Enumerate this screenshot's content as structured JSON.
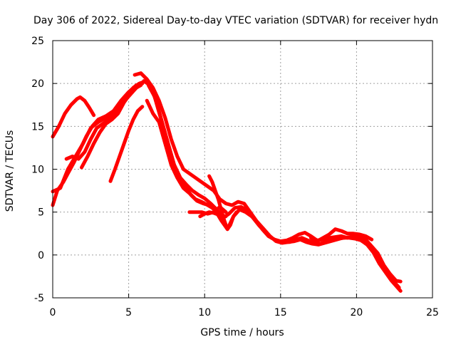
{
  "chart_data": {
    "type": "line",
    "title": "Day 306 of 2022, Sidereal Day-to-day VTEC variation (SDTVAR) for receiver hydn",
    "xlabel": "GPS time / hours",
    "ylabel": "SDTVAR / TECUs",
    "xlim": [
      0,
      25
    ],
    "ylim": [
      -5,
      25
    ],
    "xticks": [
      "0",
      "5",
      "10",
      "15",
      "20",
      "25"
    ],
    "yticks": [
      "-5",
      "0",
      "5",
      "10",
      "15",
      "20",
      "25"
    ],
    "grid": true,
    "color": "#ff0000",
    "series": [
      {
        "name": "track-1",
        "x": [
          0.0,
          0.4,
          0.8,
          1.2,
          1.6,
          1.8,
          2.1,
          2.4,
          2.7
        ],
        "y": [
          13.8,
          15.0,
          16.5,
          17.5,
          18.2,
          18.4,
          18.0,
          17.2,
          16.3
        ]
      },
      {
        "name": "track-2",
        "x": [
          0.0,
          0.3,
          0.7,
          1.0,
          1.4,
          1.8,
          2.2,
          2.6,
          3.0,
          3.5,
          4.0,
          4.5,
          5.0,
          5.5,
          5.9
        ],
        "y": [
          5.8,
          7.5,
          8.5,
          9.5,
          10.8,
          12.3,
          13.8,
          15.0,
          15.8,
          16.2,
          16.8,
          18.0,
          19.0,
          19.8,
          20.0
        ]
      },
      {
        "name": "track-3",
        "x": [
          0.0,
          0.5,
          1.0,
          1.5,
          2.0,
          2.5,
          3.0,
          3.5,
          4.0,
          4.5,
          5.0,
          5.5,
          5.8
        ],
        "y": [
          7.4,
          7.8,
          10.0,
          11.5,
          13.0,
          14.8,
          15.5,
          16.0,
          16.6,
          17.5,
          18.5,
          19.5,
          20.0
        ]
      },
      {
        "name": "track-4",
        "x": [
          0.9,
          1.3,
          1.7,
          2.1,
          2.5,
          2.9,
          3.3,
          3.7,
          4.1,
          4.5,
          4.9,
          5.3,
          5.7,
          6.0
        ],
        "y": [
          11.2,
          11.5,
          11.2,
          12.0,
          13.5,
          14.8,
          15.3,
          15.8,
          16.5,
          17.5,
          18.5,
          19.5,
          20.0,
          20.2
        ]
      },
      {
        "name": "track-5",
        "x": [
          1.9,
          2.3,
          2.7,
          3.1,
          3.5,
          3.9,
          4.3,
          4.7,
          5.1,
          5.5,
          5.8
        ],
        "y": [
          10.2,
          11.5,
          13.0,
          14.3,
          15.3,
          15.8,
          16.5,
          17.8,
          18.8,
          19.5,
          19.8
        ]
      },
      {
        "name": "track-6",
        "x": [
          3.8,
          4.1,
          4.4,
          4.7,
          5.0,
          5.3,
          5.6,
          5.9
        ],
        "y": [
          8.6,
          10.0,
          11.5,
          13.0,
          14.5,
          15.8,
          16.8,
          17.3
        ]
      },
      {
        "name": "track-7",
        "x": [
          5.4,
          5.8,
          6.2,
          6.6,
          7.0,
          7.4,
          7.8,
          8.2,
          8.6,
          9.0,
          9.4,
          9.8,
          10.2,
          10.6,
          11.0,
          11.4,
          11.8,
          12.2,
          12.6,
          13.0,
          13.4,
          13.8,
          14.2,
          14.6,
          15.0,
          15.4,
          15.8,
          16.2,
          16.6,
          17.0,
          17.4,
          17.8,
          18.2,
          18.6,
          19.0,
          19.4,
          19.8,
          20.2,
          20.6,
          21.0,
          21.4,
          21.8,
          22.2,
          22.6,
          22.9
        ],
        "y": [
          21.0,
          21.2,
          20.5,
          19.5,
          18.0,
          16.0,
          13.5,
          11.5,
          10.0,
          9.5,
          9.0,
          8.5,
          8.0,
          7.5,
          6.5,
          6.0,
          5.8,
          6.2,
          6.0,
          5.0,
          4.0,
          3.0,
          2.2,
          1.8,
          1.6,
          1.7,
          2.0,
          2.4,
          2.6,
          2.2,
          1.7,
          1.8,
          2.0,
          2.1,
          2.2,
          2.0,
          2.2,
          2.2,
          1.8,
          1.0,
          0.2,
          -1.2,
          -2.2,
          -3.0,
          -3.1
        ]
      },
      {
        "name": "track-8",
        "x": [
          6.0,
          6.4,
          6.8,
          7.2,
          7.6,
          8.0,
          8.4,
          8.8,
          9.2,
          9.6,
          10.0,
          10.4,
          10.8,
          11.2,
          11.6,
          12.0,
          12.4,
          12.8,
          13.2,
          13.6,
          14.0,
          14.4,
          14.8,
          15.2,
          15.6,
          16.0,
          16.4,
          16.8,
          17.2,
          17.6,
          18.0,
          18.4,
          18.8,
          19.2,
          19.6,
          20.0,
          20.4,
          20.8,
          21.2,
          21.6,
          22.0,
          22.4,
          22.8
        ],
        "y": [
          20.3,
          19.8,
          18.0,
          15.5,
          13.0,
          10.5,
          9.0,
          8.2,
          7.5,
          7.0,
          6.6,
          6.0,
          5.3,
          4.3,
          4.8,
          5.5,
          5.6,
          5.2,
          4.3,
          3.4,
          2.6,
          2.0,
          1.6,
          1.5,
          1.5,
          1.8,
          2.0,
          1.7,
          1.4,
          1.3,
          1.5,
          1.7,
          1.9,
          2.0,
          2.1,
          2.0,
          1.8,
          1.3,
          0.4,
          -0.8,
          -2.0,
          -3.0,
          -3.8
        ]
      },
      {
        "name": "track-9",
        "x": [
          6.3,
          6.7,
          7.1,
          7.5,
          7.9,
          8.3,
          8.7,
          9.1,
          9.5,
          9.9,
          10.3,
          10.7,
          11.1,
          11.5,
          11.9,
          12.3,
          12.7,
          13.1,
          13.5,
          13.9,
          14.3,
          14.7,
          15.1,
          15.5,
          15.9,
          16.3,
          16.7,
          17.1,
          17.5,
          17.9,
          18.3,
          18.7,
          19.1,
          19.5,
          19.9,
          20.3,
          20.7,
          21.1,
          21.5,
          21.9,
          22.3,
          22.7,
          22.9
        ],
        "y": [
          19.8,
          18.5,
          16.0,
          13.0,
          10.5,
          9.2,
          8.0,
          7.0,
          6.3,
          6.0,
          5.8,
          5.2,
          4.0,
          3.0,
          4.5,
          5.3,
          5.0,
          4.5,
          3.8,
          3.0,
          2.2,
          1.6,
          1.4,
          1.5,
          1.6,
          1.8,
          1.5,
          1.3,
          1.2,
          1.4,
          1.6,
          1.8,
          2.0,
          2.0,
          1.9,
          1.7,
          1.2,
          0.3,
          -1.0,
          -2.0,
          -3.0,
          -3.8,
          -4.2
        ]
      },
      {
        "name": "track-10",
        "x": [
          6.2,
          6.6,
          7.0,
          7.4,
          7.8,
          8.2,
          8.6,
          9.0,
          9.4,
          9.8,
          10.2,
          10.6
        ],
        "y": [
          18.0,
          16.5,
          15.5,
          13.0,
          10.5,
          9.0,
          7.8,
          7.2,
          6.5,
          6.2,
          5.8,
          5.4
        ]
      },
      {
        "name": "track-11",
        "x": [
          9.0,
          9.4,
          9.8,
          10.2,
          10.6,
          11.0,
          11.4
        ],
        "y": [
          5.0,
          5.0,
          5.0,
          4.8,
          5.0,
          5.6,
          5.0
        ]
      },
      {
        "name": "track-12",
        "x": [
          9.7,
          10.0,
          10.3,
          10.6,
          10.9,
          11.2,
          11.4
        ],
        "y": [
          4.5,
          4.8,
          5.0,
          4.9,
          4.7,
          4.6,
          4.5
        ]
      },
      {
        "name": "track-13",
        "x": [
          10.3,
          10.5,
          10.7,
          10.9,
          11.1,
          11.3,
          11.5,
          11.7,
          11.9,
          12.1
        ],
        "y": [
          9.2,
          8.5,
          7.5,
          6.5,
          5.2,
          4.0,
          3.0,
          3.5,
          4.5,
          5.0
        ]
      },
      {
        "name": "track-14",
        "x": [
          17.0,
          17.4,
          17.8,
          18.2,
          18.6,
          19.0,
          19.4,
          19.8,
          20.2,
          20.6,
          21.0
        ],
        "y": [
          2.0,
          1.6,
          2.0,
          2.4,
          3.0,
          2.8,
          2.5,
          2.5,
          2.4,
          2.2,
          1.8
        ]
      }
    ]
  }
}
